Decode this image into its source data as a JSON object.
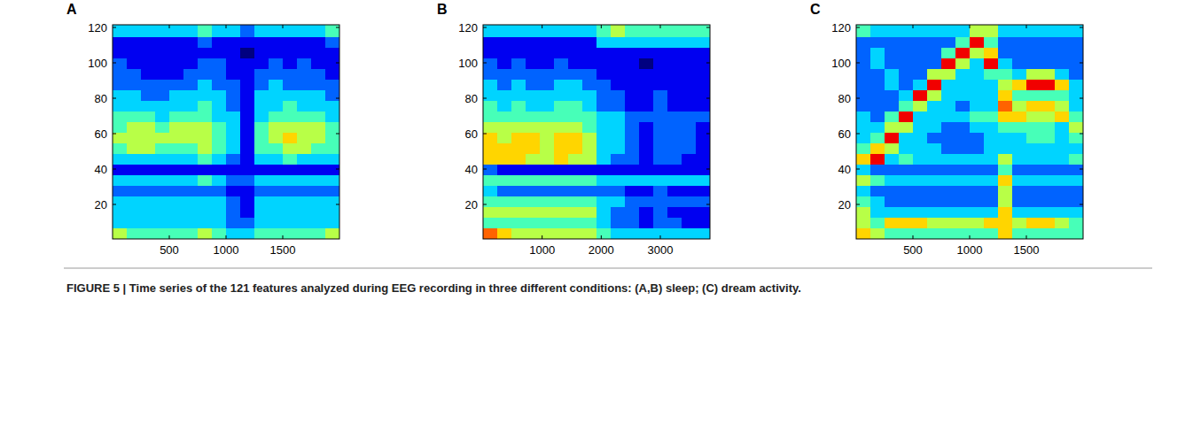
{
  "caption": "FIGURE 5 | Time series of the 121 features analyzed during EEG recording in three different conditions: (A,B) sleep; (C) dream activity.",
  "chart_data": [
    {
      "type": "heatmap",
      "title": "A",
      "xlim": [
        0,
        2000
      ],
      "ylim": [
        0.5,
        121.5
      ],
      "xticks": [
        500,
        1000,
        1500
      ],
      "yticks": [
        20,
        40,
        60,
        80,
        100,
        120
      ],
      "zlim": [
        0,
        9
      ],
      "xbins": [
        0,
        125,
        250,
        375,
        500,
        625,
        750,
        875,
        1000,
        1125,
        1250,
        1375,
        1500,
        1625,
        1750,
        1875,
        2000
      ],
      "ybins": [
        121.5,
        114.5,
        108.5,
        102.5,
        96.5,
        90.5,
        84.5,
        78.5,
        72.5,
        66.5,
        60.5,
        54.5,
        48.5,
        42.5,
        36.5,
        30.5,
        24.5,
        18.5,
        12.5,
        6.5,
        0.5
      ],
      "cells": [
        [
          3,
          3,
          3,
          3,
          3,
          3,
          4,
          3,
          3,
          2,
          3,
          3,
          3,
          3,
          3,
          4
        ],
        [
          1,
          1,
          1,
          1,
          1,
          1,
          2,
          1,
          1,
          1,
          1,
          1,
          1,
          1,
          1,
          2
        ],
        [
          1,
          1,
          1,
          1,
          1,
          1,
          1,
          1,
          1,
          0,
          1,
          1,
          1,
          1,
          1,
          1
        ],
        [
          2,
          1,
          1,
          1,
          1,
          1,
          2,
          2,
          1,
          1,
          1,
          2,
          1,
          2,
          1,
          1
        ],
        [
          2,
          2,
          1,
          1,
          1,
          2,
          2,
          2,
          1,
          1,
          2,
          2,
          2,
          2,
          2,
          1
        ],
        [
          2,
          2,
          2,
          2,
          2,
          2,
          3,
          2,
          2,
          1,
          2,
          3,
          2,
          2,
          2,
          2
        ],
        [
          3,
          3,
          2,
          2,
          3,
          3,
          3,
          3,
          2,
          1,
          3,
          3,
          3,
          3,
          3,
          2
        ],
        [
          3,
          3,
          3,
          3,
          3,
          3,
          4,
          3,
          2,
          1,
          3,
          3,
          4,
          3,
          3,
          3
        ],
        [
          4,
          4,
          4,
          3,
          4,
          4,
          4,
          3,
          3,
          1,
          3,
          4,
          4,
          4,
          4,
          3
        ],
        [
          4,
          5,
          5,
          4,
          5,
          5,
          5,
          4,
          3,
          1,
          4,
          5,
          5,
          5,
          5,
          4
        ],
        [
          5,
          5,
          5,
          5,
          5,
          5,
          5,
          4,
          3,
          1,
          4,
          5,
          6,
          5,
          5,
          4
        ],
        [
          4,
          5,
          5,
          4,
          4,
          4,
          5,
          4,
          3,
          1,
          4,
          4,
          5,
          5,
          4,
          4
        ],
        [
          3,
          3,
          3,
          3,
          3,
          3,
          4,
          3,
          2,
          1,
          3,
          3,
          4,
          3,
          3,
          3
        ],
        [
          1,
          1,
          1,
          1,
          1,
          1,
          1,
          1,
          1,
          1,
          1,
          1,
          1,
          1,
          1,
          1
        ],
        [
          3,
          3,
          3,
          3,
          3,
          3,
          4,
          3,
          2,
          2,
          3,
          3,
          3,
          3,
          3,
          3
        ],
        [
          2,
          2,
          2,
          2,
          2,
          2,
          2,
          2,
          1,
          1,
          2,
          2,
          2,
          2,
          2,
          2
        ],
        [
          3,
          3,
          3,
          3,
          3,
          3,
          3,
          3,
          2,
          1,
          3,
          3,
          3,
          3,
          3,
          3
        ],
        [
          3,
          3,
          3,
          3,
          3,
          3,
          3,
          3,
          2,
          1,
          3,
          3,
          3,
          3,
          3,
          3
        ],
        [
          3,
          3,
          3,
          3,
          3,
          3,
          3,
          3,
          2,
          2,
          3,
          3,
          3,
          3,
          3,
          3
        ],
        [
          5,
          4,
          4,
          4,
          4,
          4,
          5,
          4,
          3,
          3,
          4,
          4,
          4,
          4,
          4,
          5
        ]
      ]
    },
    {
      "type": "heatmap",
      "title": "B",
      "xlim": [
        0,
        3840
      ],
      "ylim": [
        0.5,
        121.5
      ],
      "xticks": [
        1000,
        2000,
        3000
      ],
      "yticks": [
        20,
        40,
        60,
        80,
        100,
        120
      ],
      "zlim": [
        0,
        9
      ],
      "xbins": [
        0,
        240,
        480,
        720,
        960,
        1200,
        1440,
        1680,
        1920,
        2160,
        2400,
        2640,
        2880,
        3120,
        3360,
        3600,
        3840
      ],
      "ybins": [
        121.5,
        114.5,
        108.5,
        102.5,
        96.5,
        90.5,
        84.5,
        78.5,
        72.5,
        66.5,
        60.5,
        54.5,
        48.5,
        42.5,
        36.5,
        30.5,
        24.5,
        18.5,
        12.5,
        6.5,
        0.5
      ],
      "cells": [
        [
          3,
          3,
          3,
          3,
          3,
          3,
          3,
          3,
          4,
          5,
          4,
          4,
          4,
          4,
          4,
          4
        ],
        [
          1,
          1,
          1,
          1,
          1,
          1,
          1,
          1,
          3,
          3,
          3,
          3,
          3,
          3,
          3,
          3
        ],
        [
          1,
          1,
          1,
          1,
          1,
          1,
          1,
          1,
          1,
          1,
          1,
          1,
          1,
          1,
          1,
          1
        ],
        [
          2,
          1,
          2,
          1,
          1,
          2,
          1,
          1,
          1,
          1,
          1,
          0,
          1,
          1,
          1,
          1
        ],
        [
          2,
          2,
          2,
          2,
          2,
          2,
          2,
          2,
          1,
          1,
          1,
          1,
          1,
          1,
          1,
          1
        ],
        [
          3,
          2,
          3,
          2,
          2,
          3,
          3,
          2,
          2,
          1,
          1,
          1,
          1,
          1,
          1,
          1
        ],
        [
          3,
          3,
          3,
          3,
          3,
          3,
          3,
          3,
          2,
          2,
          1,
          1,
          2,
          1,
          1,
          1
        ],
        [
          4,
          3,
          4,
          3,
          3,
          4,
          4,
          3,
          2,
          2,
          1,
          1,
          2,
          1,
          1,
          1
        ],
        [
          4,
          4,
          4,
          4,
          4,
          4,
          4,
          4,
          3,
          3,
          2,
          2,
          2,
          2,
          2,
          2
        ],
        [
          5,
          5,
          5,
          5,
          5,
          5,
          5,
          4,
          3,
          3,
          2,
          1,
          2,
          2,
          2,
          1
        ],
        [
          6,
          5,
          6,
          6,
          5,
          6,
          6,
          5,
          3,
          3,
          2,
          1,
          2,
          2,
          2,
          1
        ],
        [
          6,
          6,
          6,
          6,
          5,
          6,
          6,
          5,
          3,
          3,
          2,
          1,
          2,
          2,
          2,
          1
        ],
        [
          6,
          6,
          6,
          5,
          5,
          6,
          5,
          5,
          3,
          2,
          2,
          1,
          2,
          2,
          1,
          1
        ],
        [
          2,
          1,
          1,
          1,
          1,
          1,
          1,
          1,
          1,
          1,
          1,
          1,
          1,
          1,
          1,
          1
        ],
        [
          4,
          4,
          4,
          4,
          4,
          4,
          4,
          4,
          3,
          3,
          3,
          3,
          3,
          3,
          3,
          3
        ],
        [
          3,
          2,
          2,
          2,
          2,
          2,
          2,
          2,
          2,
          2,
          1,
          1,
          2,
          1,
          1,
          1
        ],
        [
          4,
          4,
          4,
          4,
          4,
          4,
          4,
          4,
          3,
          3,
          2,
          2,
          2,
          2,
          2,
          2
        ],
        [
          5,
          5,
          5,
          5,
          5,
          5,
          5,
          5,
          3,
          2,
          2,
          1,
          2,
          1,
          1,
          1
        ],
        [
          4,
          4,
          4,
          4,
          4,
          4,
          4,
          4,
          3,
          2,
          2,
          1,
          2,
          2,
          1,
          1
        ],
        [
          7,
          6,
          5,
          5,
          5,
          5,
          5,
          5,
          4,
          3,
          3,
          3,
          3,
          3,
          3,
          3
        ]
      ]
    },
    {
      "type": "heatmap",
      "title": "C",
      "xlim": [
        0,
        2000
      ],
      "ylim": [
        0.5,
        121.5
      ],
      "xticks": [
        500,
        1000,
        1500
      ],
      "yticks": [
        20,
        40,
        60,
        80,
        100,
        120
      ],
      "zlim": [
        0,
        9
      ],
      "xbins": [
        0,
        125,
        250,
        375,
        500,
        625,
        750,
        875,
        1000,
        1125,
        1250,
        1375,
        1500,
        1625,
        1750,
        1875,
        2000
      ],
      "ybins": [
        121.5,
        114.5,
        108.5,
        102.5,
        96.5,
        90.5,
        84.5,
        78.5,
        72.5,
        66.5,
        60.5,
        54.5,
        48.5,
        42.5,
        36.5,
        30.5,
        24.5,
        18.5,
        12.5,
        6.5,
        0.5
      ],
      "cells": [
        [
          4,
          3,
          3,
          3,
          3,
          3,
          3,
          3,
          5,
          5,
          3,
          3,
          3,
          3,
          3,
          3
        ],
        [
          2,
          2,
          2,
          2,
          2,
          2,
          2,
          4,
          8,
          4,
          2,
          2,
          2,
          2,
          2,
          2
        ],
        [
          2,
          3,
          2,
          2,
          2,
          2,
          4,
          8,
          5,
          6,
          2,
          2,
          2,
          2,
          2,
          2
        ],
        [
          2,
          3,
          2,
          2,
          2,
          2,
          8,
          5,
          3,
          8,
          3,
          2,
          2,
          2,
          2,
          2
        ],
        [
          2,
          2,
          3,
          2,
          2,
          5,
          5,
          3,
          3,
          4,
          4,
          3,
          5,
          5,
          3,
          2
        ],
        [
          2,
          2,
          3,
          2,
          3,
          8,
          3,
          3,
          3,
          3,
          5,
          6,
          8,
          8,
          6,
          3
        ],
        [
          2,
          2,
          2,
          3,
          8,
          5,
          3,
          3,
          3,
          3,
          6,
          4,
          4,
          4,
          4,
          3
        ],
        [
          2,
          2,
          2,
          4,
          5,
          3,
          3,
          2,
          3,
          3,
          7,
          5,
          6,
          6,
          5,
          3
        ],
        [
          3,
          2,
          4,
          8,
          3,
          3,
          3,
          3,
          4,
          4,
          6,
          6,
          5,
          5,
          6,
          4
        ],
        [
          3,
          3,
          5,
          5,
          3,
          3,
          2,
          2,
          3,
          3,
          4,
          4,
          4,
          4,
          3,
          5
        ],
        [
          3,
          4,
          8,
          3,
          3,
          2,
          2,
          2,
          2,
          3,
          3,
          3,
          4,
          4,
          3,
          4
        ],
        [
          4,
          6,
          5,
          3,
          3,
          3,
          2,
          2,
          2,
          3,
          3,
          3,
          3,
          3,
          3,
          3
        ],
        [
          6,
          8,
          3,
          4,
          3,
          3,
          3,
          3,
          3,
          3,
          5,
          3,
          3,
          3,
          3,
          4
        ],
        [
          3,
          2,
          2,
          2,
          2,
          2,
          2,
          2,
          2,
          2,
          4,
          2,
          2,
          2,
          2,
          2
        ],
        [
          5,
          4,
          3,
          3,
          3,
          3,
          3,
          3,
          3,
          3,
          6,
          3,
          3,
          3,
          3,
          3
        ],
        [
          3,
          2,
          2,
          2,
          2,
          2,
          2,
          2,
          2,
          2,
          5,
          2,
          2,
          2,
          2,
          2
        ],
        [
          4,
          3,
          2,
          2,
          2,
          2,
          2,
          2,
          2,
          2,
          5,
          2,
          2,
          2,
          2,
          2
        ],
        [
          5,
          3,
          3,
          3,
          3,
          3,
          3,
          3,
          3,
          3,
          6,
          3,
          3,
          3,
          3,
          3
        ],
        [
          5,
          4,
          6,
          6,
          6,
          5,
          5,
          5,
          5,
          6,
          6,
          5,
          6,
          6,
          5,
          4
        ],
        [
          6,
          5,
          4,
          4,
          4,
          4,
          4,
          4,
          4,
          4,
          6,
          4,
          4,
          4,
          4,
          4
        ]
      ]
    }
  ]
}
